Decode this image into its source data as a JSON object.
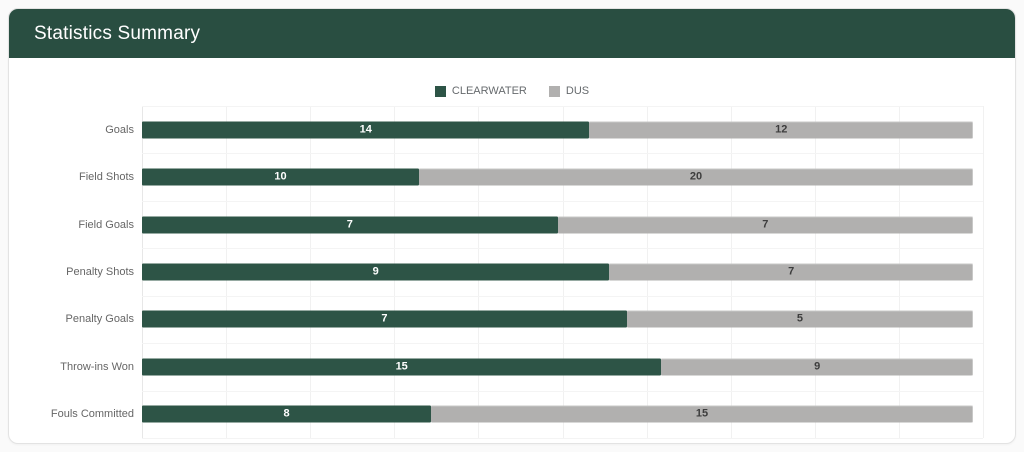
{
  "card": {
    "header": {
      "title": "Statistics Summary"
    }
  },
  "theme": {
    "header_bg": "#294e41",
    "clearwater_color": "#2d5446",
    "dus_color": "#b1b0af",
    "label_color": "#666666",
    "value_on_clearwater": "#ffffff",
    "value_on_dus": "#3d3d3d"
  },
  "chart_data": {
    "type": "bar",
    "variant": "horizontal-stacked-normalized",
    "title": "",
    "categories": [
      "Goals",
      "Field Shots",
      "Field Goals",
      "Penalty Shots",
      "Penalty Goals",
      "Throw-ins Won",
      "Fouls Committed"
    ],
    "series": [
      {
        "name": "CLEARWATER",
        "color": "#2d5446",
        "values": [
          14,
          10,
          7,
          9,
          7,
          15,
          8
        ]
      },
      {
        "name": "DUS",
        "color": "#b1b0af",
        "values": [
          12,
          20,
          7,
          7,
          5,
          9,
          15
        ]
      }
    ],
    "legend_position": "top",
    "grid": true,
    "x_axis": {
      "min_pct": 0,
      "max_pct": 100,
      "gridline_interval_pct": 10,
      "tick_labels_visible": false
    }
  }
}
